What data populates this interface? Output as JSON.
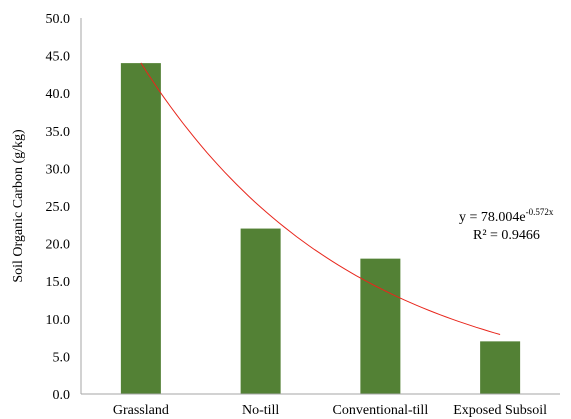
{
  "chart_data": {
    "type": "bar",
    "title": "",
    "xlabel": "",
    "ylabel": "Soil Organic Carbon (g/kg)",
    "ylim": [
      0,
      50
    ],
    "ytick_step": 5,
    "ytick_labels": [
      "0.0",
      "5.0",
      "10.0",
      "15.0",
      "20.0",
      "25.0",
      "30.0",
      "35.0",
      "40.0",
      "45.0",
      "50.0"
    ],
    "categories": [
      "Grassland",
      "No-till",
      "Conventional-till",
      "Exposed Subsoil"
    ],
    "values": [
      44.0,
      22.0,
      18.0,
      7.0
    ],
    "grid": false,
    "legend": "none",
    "bar_color": "#538135",
    "trendline": {
      "type": "exponential",
      "a": 78.004,
      "b": -0.572,
      "color": "#e8261c",
      "equation_base": "y = 78.004e",
      "equation_exponent": "-0.572x",
      "r_squared": "R² = 0.9466"
    }
  }
}
